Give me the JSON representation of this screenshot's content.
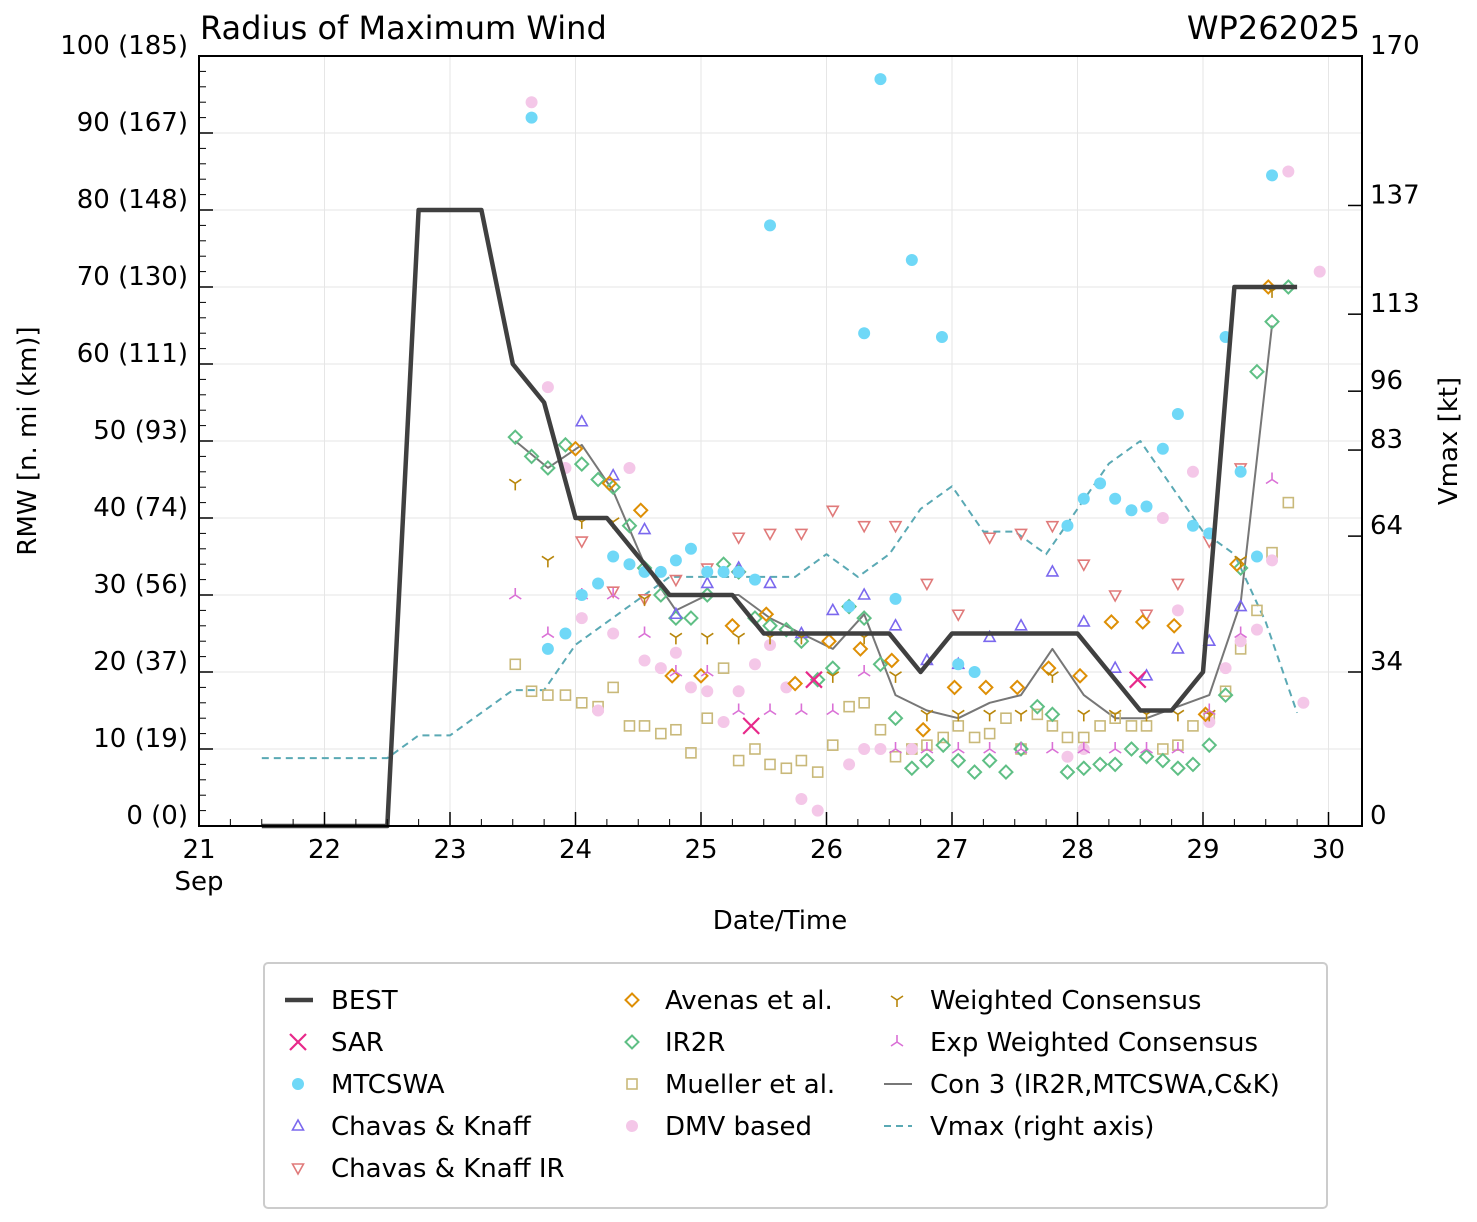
{
  "chart_data": {
    "type": "line+scatter",
    "title": "Radius of Maximum Wind",
    "storm_id": "WP262025",
    "xlabel": "Date/Time",
    "ylabel_left": "RMW [n. mi (km)]",
    "ylabel_right": "Vmax [kt]",
    "x_units": "day of September 2025",
    "xlim": [
      21,
      30.25
    ],
    "ylim_left": [
      0,
      100
    ],
    "ylim_right": [
      0,
      170
    ],
    "x_ticks": [
      {
        "v": 21,
        "label": "21",
        "sub": "Sep"
      },
      {
        "v": 22,
        "label": "22"
      },
      {
        "v": 23,
        "label": "23"
      },
      {
        "v": 24,
        "label": "24"
      },
      {
        "v": 25,
        "label": "25"
      },
      {
        "v": 26,
        "label": "26"
      },
      {
        "v": 27,
        "label": "27"
      },
      {
        "v": 28,
        "label": "28"
      },
      {
        "v": 29,
        "label": "29"
      },
      {
        "v": 30,
        "label": "30"
      }
    ],
    "left_ticks": [
      {
        "v": 0,
        "label": "0 (0)"
      },
      {
        "v": 10,
        "label": "10 (19)"
      },
      {
        "v": 20,
        "label": "20 (37)"
      },
      {
        "v": 30,
        "label": "30 (56)"
      },
      {
        "v": 40,
        "label": "40 (74)"
      },
      {
        "v": 50,
        "label": "50 (93)"
      },
      {
        "v": 60,
        "label": "60 (111)"
      },
      {
        "v": 70,
        "label": "70 (130)"
      },
      {
        "v": 80,
        "label": "80 (148)"
      },
      {
        "v": 90,
        "label": "90 (167)"
      },
      {
        "v": 100,
        "label": "100 (185)"
      }
    ],
    "right_ticks": [
      {
        "v": 0,
        "label": "0"
      },
      {
        "v": 34,
        "label": "34"
      },
      {
        "v": 64,
        "label": "64"
      },
      {
        "v": 83,
        "label": "83"
      },
      {
        "v": 96,
        "label": "96"
      },
      {
        "v": 113,
        "label": "113"
      },
      {
        "v": 137,
        "label": "137"
      },
      {
        "v": 170,
        "label": "170"
      }
    ],
    "legend_position": "below plot",
    "series": [
      {
        "name": "BEST",
        "style": "line",
        "color": "#404040",
        "x": [
          21.5,
          22.5,
          22.75,
          23.25,
          23.5,
          23.75,
          24.0,
          24.25,
          24.5,
          24.75,
          25.0,
          25.25,
          25.5,
          25.75,
          26.0,
          26.25,
          26.5,
          26.75,
          27.0,
          27.25,
          27.5,
          27.75,
          28.0,
          28.25,
          28.5,
          28.75,
          29.0,
          29.25,
          29.5,
          29.75
        ],
        "y": [
          0,
          0,
          80,
          80,
          60,
          55,
          40,
          40,
          35,
          30,
          30,
          30,
          25,
          25,
          25,
          25,
          25,
          20,
          25,
          25,
          25,
          25,
          25,
          20,
          15,
          15,
          20,
          70,
          70,
          70
        ]
      },
      {
        "name": "SAR",
        "style": "x",
        "color": "#e7298a",
        "x": [
          25.4,
          25.9,
          28.48
        ],
        "y": [
          13,
          19,
          19
        ]
      },
      {
        "name": "MTCSWA",
        "style": "dot",
        "color": "#6fd8f7",
        "x": [
          23.65,
          23.78,
          23.92,
          24.05,
          24.18,
          24.3,
          24.43,
          24.55,
          24.68,
          24.8,
          24.92,
          25.05,
          25.18,
          25.3,
          25.43,
          25.55,
          26.18,
          26.3,
          26.43,
          26.55,
          26.68,
          26.92,
          27.05,
          27.18,
          27.92,
          28.05,
          28.18,
          28.3,
          28.43,
          28.55,
          28.68,
          28.8,
          28.92,
          29.05,
          29.18,
          29.3,
          29.43,
          29.55
        ],
        "y": [
          92,
          23,
          25,
          30,
          31.5,
          35,
          34,
          33,
          33,
          34.5,
          36,
          33,
          33,
          33,
          32,
          78,
          28.5,
          64,
          97,
          29.5,
          73.5,
          63.5,
          21,
          20,
          39,
          42.5,
          44.5,
          42.5,
          41,
          41.5,
          49,
          53.5,
          39,
          38,
          63.5,
          46,
          35,
          84.5
        ]
      },
      {
        "name": "Chavas & Knaff",
        "style": "tri-up",
        "color": "#7b68ee",
        "x": [
          24.05,
          24.3,
          24.55,
          24.8,
          25.05,
          25.3,
          25.55,
          25.8,
          26.05,
          26.3,
          26.55,
          26.8,
          27.05,
          27.3,
          27.55,
          27.8,
          28.05,
          28.3,
          28.55,
          28.8,
          29.05,
          29.3
        ],
        "y": [
          52.5,
          45.5,
          38.5,
          27.5,
          31.5,
          33.5,
          31.5,
          25,
          28,
          30,
          26,
          21.5,
          21,
          24.5,
          26,
          33,
          26.5,
          20.5,
          19.5,
          23,
          24,
          28.5
        ]
      },
      {
        "name": "Chavas & Knaff IR",
        "style": "tri-down",
        "color": "#e07a7a",
        "x": [
          24.05,
          24.3,
          24.55,
          24.8,
          25.05,
          25.3,
          25.55,
          25.8,
          26.05,
          26.3,
          26.55,
          26.8,
          27.05,
          27.3,
          27.55,
          27.8,
          28.05,
          28.3,
          28.55,
          28.8,
          29.05,
          29.3
        ],
        "y": [
          37,
          30.5,
          29.5,
          32,
          33.5,
          37.5,
          38,
          38,
          41,
          39,
          39,
          31.5,
          27.5,
          37.5,
          38,
          39,
          34,
          30,
          27.5,
          31.5,
          37,
          46.5
        ]
      },
      {
        "name": "Avenas et al.",
        "style": "diamond",
        "color": "#de8f05",
        "x": [
          24.0,
          24.27,
          24.52,
          24.77,
          25.0,
          25.25,
          25.52,
          25.75,
          26.02,
          26.27,
          26.52,
          26.77,
          27.02,
          27.27,
          27.52,
          27.77,
          28.02,
          28.27,
          28.52,
          28.77,
          29.02,
          29.27,
          29.52
        ],
        "y": [
          49,
          44.5,
          41,
          19.5,
          19.5,
          26,
          27.5,
          18.5,
          24,
          23,
          21.5,
          12.5,
          18,
          18,
          18,
          20.5,
          19.5,
          26.5,
          26.5,
          26,
          14.5,
          34,
          70
        ]
      },
      {
        "name": "IR2R",
        "style": "diamond",
        "color": "#5fbf85",
        "x": [
          23.52,
          23.65,
          23.78,
          23.92,
          24.05,
          24.18,
          24.3,
          24.43,
          24.55,
          24.68,
          24.8,
          24.92,
          25.05,
          25.18,
          25.3,
          25.43,
          25.55,
          25.68,
          25.8,
          25.93,
          26.05,
          26.18,
          26.3,
          26.43,
          26.55,
          26.68,
          26.8,
          26.93,
          27.05,
          27.18,
          27.3,
          27.43,
          27.55,
          27.68,
          27.8,
          27.92,
          28.05,
          28.18,
          28.3,
          28.43,
          28.55,
          28.68,
          28.8,
          28.92,
          29.05,
          29.18,
          29.3,
          29.43,
          29.55,
          29.68
        ],
        "y": [
          50.5,
          48,
          46.5,
          49.5,
          47,
          45,
          44,
          39,
          33.5,
          30,
          27,
          27,
          30,
          34,
          33,
          27,
          26,
          25.5,
          24,
          19,
          20.5,
          28.5,
          27,
          21,
          14,
          7.5,
          8.5,
          10.5,
          8.5,
          7,
          8.5,
          7,
          10,
          15.5,
          14.5,
          7,
          7.5,
          8,
          8,
          10,
          9,
          8.5,
          7.5,
          8,
          10.5,
          17,
          33.5,
          59,
          65.5,
          70
        ]
      },
      {
        "name": "Mueller et al.",
        "style": "square",
        "color": "#c9b97a",
        "x": [
          23.52,
          23.65,
          23.78,
          23.92,
          24.05,
          24.18,
          24.3,
          24.43,
          24.55,
          24.68,
          24.8,
          24.92,
          25.05,
          25.18,
          25.3,
          25.43,
          25.55,
          25.68,
          25.8,
          25.93,
          26.05,
          26.18,
          26.3,
          26.43,
          26.55,
          26.68,
          26.8,
          26.93,
          27.05,
          27.18,
          27.3,
          27.43,
          27.55,
          27.68,
          27.8,
          27.92,
          28.05,
          28.18,
          28.3,
          28.43,
          28.55,
          28.68,
          28.8,
          28.92,
          29.05,
          29.18,
          29.3,
          29.43,
          29.55,
          29.68
        ],
        "y": [
          21,
          17.5,
          17,
          17,
          16,
          15.5,
          18,
          13,
          13,
          12,
          12.5,
          9.5,
          14,
          20.5,
          8.5,
          10,
          8,
          7.5,
          8.5,
          7,
          10.5,
          15.5,
          16,
          12.5,
          9,
          10,
          10.5,
          11.5,
          13,
          11.5,
          12,
          14,
          10,
          14.5,
          13,
          11.5,
          11.5,
          13,
          14,
          13,
          13,
          10,
          10.5,
          13,
          14,
          17.5,
          23,
          28,
          35.5,
          42
        ]
      },
      {
        "name": "DMV based",
        "style": "dot",
        "color": "#f4c7e8",
        "x": [
          23.65,
          23.78,
          23.92,
          24.05,
          24.18,
          24.3,
          24.43,
          24.55,
          24.68,
          24.8,
          24.92,
          25.05,
          25.18,
          25.3,
          25.43,
          25.55,
          25.68,
          25.8,
          25.93,
          26.18,
          26.3,
          26.43,
          26.68,
          27.92,
          28.05,
          28.68,
          28.8,
          28.92,
          29.05,
          29.18,
          29.3,
          29.43,
          29.55,
          29.68,
          29.8,
          29.93
        ],
        "y": [
          94,
          57,
          46.5,
          27,
          15,
          25,
          46.5,
          21.5,
          20.5,
          22.5,
          18,
          17.5,
          13.5,
          17.5,
          21,
          23.5,
          18,
          3.5,
          2,
          8,
          10,
          10,
          10,
          9,
          10,
          40,
          28,
          46,
          13.5,
          20.5,
          24,
          25.5,
          34.5,
          85,
          16,
          72
        ]
      },
      {
        "name": "Weighted Consensus",
        "style": "tri-y",
        "color": "#b8860b",
        "x": [
          23.52,
          23.78,
          24.05,
          24.3,
          24.55,
          24.8,
          25.05,
          25.3,
          25.55,
          25.8,
          26.05,
          26.3,
          26.55,
          26.8,
          27.05,
          27.3,
          27.55,
          27.8,
          28.05,
          28.3,
          28.55,
          28.8,
          29.05,
          29.3,
          29.55
        ],
        "y": [
          44.5,
          34.5,
          39.5,
          39.5,
          29.5,
          24.5,
          24.5,
          24.5,
          24.5,
          24.5,
          19.5,
          24.5,
          19.5,
          14.5,
          14.5,
          14.5,
          14.5,
          19.5,
          14.5,
          14.5,
          14.5,
          14.5,
          14.5,
          34.5,
          69.5
        ]
      },
      {
        "name": "Exp Weighted Consensus",
        "style": "tri-inv",
        "color": "#da70d6",
        "x": [
          23.52,
          23.78,
          24.05,
          24.3,
          24.55,
          24.8,
          25.05,
          25.3,
          25.55,
          25.8,
          26.05,
          26.3,
          26.55,
          26.8,
          27.05,
          27.3,
          27.55,
          27.8,
          28.05,
          28.3,
          28.55,
          28.8,
          29.05,
          29.3,
          29.55
        ],
        "y": [
          30,
          25,
          30,
          30,
          25,
          20,
          20,
          15,
          15,
          15,
          15,
          20,
          10,
          10,
          10,
          10,
          10,
          10,
          10,
          10,
          10,
          10,
          15,
          25,
          45
        ]
      },
      {
        "name": "Con 3 (IR2R,MTCSWA,C&K)",
        "style": "thin-line",
        "color": "#777777",
        "x": [
          23.52,
          23.78,
          24.05,
          24.3,
          24.55,
          24.8,
          25.05,
          25.3,
          25.55,
          25.8,
          26.05,
          26.3,
          26.55,
          26.8,
          27.05,
          27.3,
          27.55,
          27.8,
          28.05,
          28.3,
          28.55,
          28.8,
          29.05,
          29.3,
          29.55
        ],
        "y": [
          50,
          46.5,
          49.5,
          43.5,
          34,
          28,
          30,
          30,
          27,
          25,
          23,
          27.5,
          17,
          15,
          14,
          16,
          17,
          23,
          17,
          14,
          14,
          15.5,
          17,
          29,
          65
        ]
      },
      {
        "name": "Vmax (right axis)",
        "style": "dashed",
        "color": "#5aa9b4",
        "axis": "right",
        "x": [
          21.5,
          22.5,
          22.75,
          23.0,
          23.5,
          23.75,
          24.0,
          24.25,
          24.5,
          24.75,
          25.0,
          25.25,
          25.5,
          25.75,
          26.0,
          26.25,
          26.5,
          26.75,
          27.0,
          27.25,
          27.5,
          27.75,
          28.0,
          28.25,
          28.5,
          28.75,
          29.0,
          29.25,
          29.5,
          29.75
        ],
        "y": [
          15,
          15,
          20,
          20,
          30,
          30,
          40,
          45,
          50,
          55,
          55,
          55,
          55,
          55,
          60,
          55,
          60,
          70,
          75,
          65,
          65,
          60,
          70,
          80,
          85,
          75,
          65,
          60,
          45,
          25
        ]
      }
    ]
  }
}
